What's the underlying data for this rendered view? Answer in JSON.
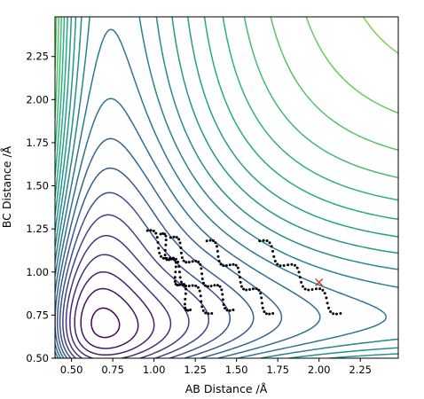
{
  "chart_data": {
    "type": "contour",
    "title": "",
    "xlabel": "AB Distance /Å",
    "ylabel": "BC Distance /Å",
    "xlim": [
      0.4,
      2.48
    ],
    "ylim": [
      0.5,
      2.48
    ],
    "xticks": [
      "0.50",
      "0.75",
      "1.00",
      "1.25",
      "1.50",
      "1.75",
      "2.00",
      "2.25"
    ],
    "yticks": [
      "0.50",
      "0.75",
      "1.00",
      "1.25",
      "1.50",
      "1.75",
      "2.00",
      "2.25"
    ],
    "colormap": "viridis",
    "contour_levels": 26,
    "grid": false,
    "marker": {
      "symbol": "x",
      "color": "#d62728",
      "x": 2.0,
      "y": 0.94
    },
    "trajectory_color": "#000000",
    "trajectory": [
      {
        "start": [
          0.96,
          1.24
        ],
        "end": [
          1.35,
          0.76
        ]
      },
      {
        "start": [
          1.32,
          1.18
        ],
        "end": [
          1.72,
          0.76
        ]
      },
      {
        "start": [
          1.64,
          1.18
        ],
        "end": [
          2.13,
          0.76
        ]
      },
      {
        "start": [
          1.04,
          1.22
        ],
        "end": [
          1.22,
          0.78
        ]
      },
      {
        "start": [
          1.1,
          1.2
        ],
        "end": [
          1.48,
          0.78
        ]
      }
    ]
  }
}
